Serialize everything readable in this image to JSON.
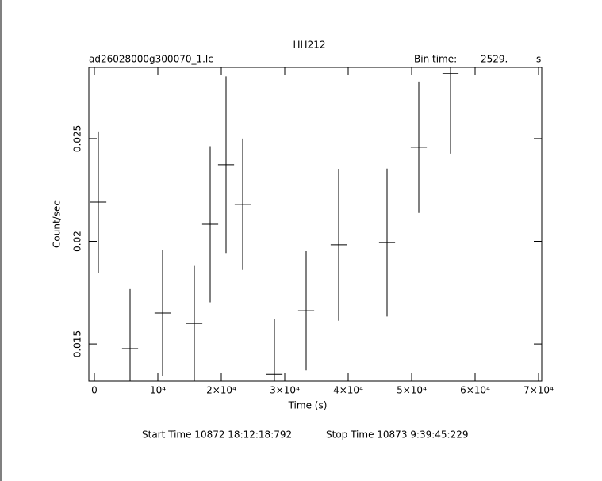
{
  "chart_data": {
    "type": "errorbar",
    "title": "HH212",
    "subtitle": "ad26028000g300070_1.lc",
    "bin_time_label": "Bin time:",
    "bin_time": {
      "value": 2529,
      "label": "2529."
    },
    "bin_time_unit": "s",
    "x_label": "Time (s)",
    "y_label": "Count/sec",
    "start_time": "Start Time 10872 18:12:18:792",
    "stop_time": "Stop Time 10873  9:39:45:229",
    "color": "#000000",
    "x": [
      625,
      5625,
      10750,
      15750,
      18250,
      20750,
      23375,
      28375,
      33375,
      38500,
      46125,
      51125,
      56125
    ],
    "values": [
      0.02191,
      0.01477,
      0.01651,
      0.016,
      0.02083,
      0.02373,
      0.0218,
      0.01353,
      0.01662,
      0.01983,
      0.01994,
      0.02458,
      0.02817
    ],
    "errors": [
      0.00344,
      0.0029,
      0.00305,
      0.0028,
      0.0038,
      0.0043,
      0.0032,
      0.0027,
      0.0029,
      0.0037,
      0.0036,
      0.0032,
      0.0039
    ],
    "xlim": [
      -875,
      70500
    ],
    "ylim": [
      0.01319,
      0.02847
    ],
    "xticks": [
      0,
      {
        "value": 10000,
        "label": "10⁴"
      },
      {
        "value": 20000,
        "label": "2×10⁴"
      },
      {
        "value": 30000,
        "label": "3×10⁴"
      },
      {
        "value": 40000,
        "label": "4×10⁴"
      },
      {
        "value": 50000,
        "label": "5×10⁴"
      },
      {
        "value": 60000,
        "label": "6×10⁴"
      },
      {
        "value": 70000,
        "label": "7×10⁴"
      }
    ],
    "yticks": [
      0.015,
      0.02,
      0.025
    ]
  }
}
